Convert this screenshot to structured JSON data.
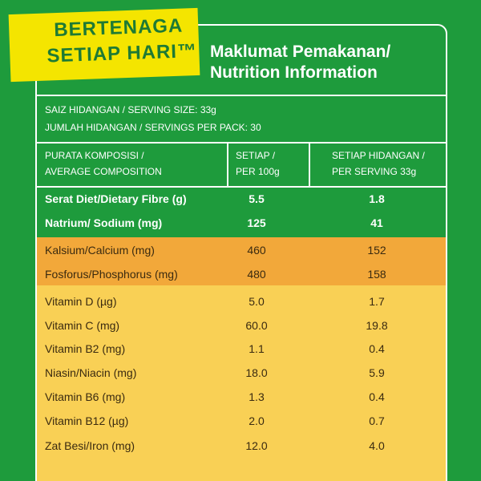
{
  "badge": {
    "lines": [
      "BERTENAGA",
      "SETIAP HARI™"
    ]
  },
  "header": {
    "title_lines": [
      "Maklumat Pemakanan/",
      "Nutrition Information"
    ]
  },
  "serving_info": [
    "SAIZ HIDANGAN / SERVING SIZE: 33g",
    "JUMLAH HIDANGAN / SERVINGS PER PACK: 30"
  ],
  "table": {
    "columns": [
      [
        "PURATA KOMPOSISI /",
        "AVERAGE COMPOSITION"
      ],
      [
        "SETIAP /",
        "PER 100g"
      ],
      [
        "SETIAP HIDANGAN /",
        "PER SERVING 33g"
      ]
    ],
    "rows": [
      [
        "Serat Diet/Dietary Fibre (g)",
        "5.5",
        "1.8"
      ],
      [
        "Natrium/ Sodium (mg)",
        "125",
        "41"
      ],
      [
        "Kalsium/Calcium (mg)",
        "460",
        "152"
      ],
      [
        "Fosforus/Phosphorus (mg)",
        "480",
        "158"
      ],
      [
        "Vitamin D (µg)",
        "5.0",
        "1.7"
      ],
      [
        "Vitamin C (mg)",
        "60.0",
        "19.8"
      ],
      [
        "Vitamin B2 (mg)",
        "1.1",
        "0.4"
      ],
      [
        "Niasin/Niacin (mg)",
        "18.0",
        "5.9"
      ],
      [
        "Vitamin B6 (mg)",
        "1.3",
        "0.4"
      ],
      [
        "Vitamin B12 (µg)",
        "2.0",
        "0.7"
      ],
      [
        "Zat Besi/Iron (mg)",
        "12.0",
        "4.0"
      ]
    ]
  }
}
